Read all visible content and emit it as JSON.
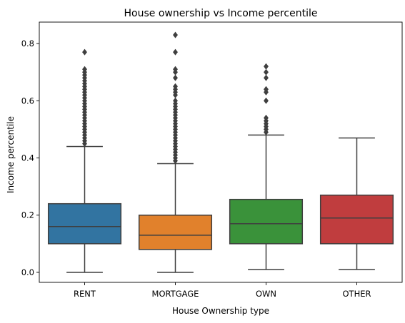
{
  "chart_data": {
    "type": "box",
    "title": "House ownership vs Income percentile",
    "xlabel": "House Ownership type",
    "ylabel": "Income percentile",
    "ylim": [
      -0.035,
      0.875
    ],
    "yticks": [
      "0.0",
      "0.2",
      "0.4",
      "0.6",
      "0.8"
    ],
    "ytick_values": [
      0.0,
      0.2,
      0.4,
      0.6,
      0.8
    ],
    "grid": false,
    "categories": [
      "RENT",
      "MORTGAGE",
      "OWN",
      "OTHER"
    ],
    "boxes": [
      {
        "category": "RENT",
        "color": "#3274a1",
        "whisker_low": 0.0,
        "q1": 0.1,
        "median": 0.16,
        "q3": 0.24,
        "whisker_high": 0.44,
        "outliers": [
          0.45,
          0.46,
          0.47,
          0.48,
          0.49,
          0.5,
          0.51,
          0.52,
          0.53,
          0.54,
          0.55,
          0.56,
          0.57,
          0.58,
          0.59,
          0.6,
          0.61,
          0.62,
          0.63,
          0.64,
          0.65,
          0.66,
          0.67,
          0.68,
          0.69,
          0.7,
          0.71,
          0.77
        ]
      },
      {
        "category": "MORTGAGE",
        "color": "#e1812c",
        "whisker_low": 0.0,
        "q1": 0.08,
        "median": 0.13,
        "q3": 0.2,
        "whisker_high": 0.38,
        "outliers": [
          0.39,
          0.4,
          0.41,
          0.42,
          0.43,
          0.44,
          0.45,
          0.46,
          0.47,
          0.48,
          0.49,
          0.5,
          0.51,
          0.52,
          0.53,
          0.54,
          0.55,
          0.56,
          0.57,
          0.58,
          0.59,
          0.6,
          0.62,
          0.63,
          0.64,
          0.65,
          0.68,
          0.7,
          0.71,
          0.77,
          0.83
        ]
      },
      {
        "category": "OWN",
        "color": "#3a923a",
        "whisker_low": 0.01,
        "q1": 0.1,
        "median": 0.17,
        "q3": 0.255,
        "whisker_high": 0.48,
        "outliers": [
          0.49,
          0.5,
          0.51,
          0.52,
          0.53,
          0.54,
          0.6,
          0.63,
          0.64,
          0.68,
          0.7,
          0.72
        ]
      },
      {
        "category": "OTHER",
        "color": "#c03d3e",
        "whisker_low": 0.01,
        "q1": 0.1,
        "median": 0.19,
        "q3": 0.27,
        "whisker_high": 0.47,
        "outliers": []
      }
    ]
  }
}
